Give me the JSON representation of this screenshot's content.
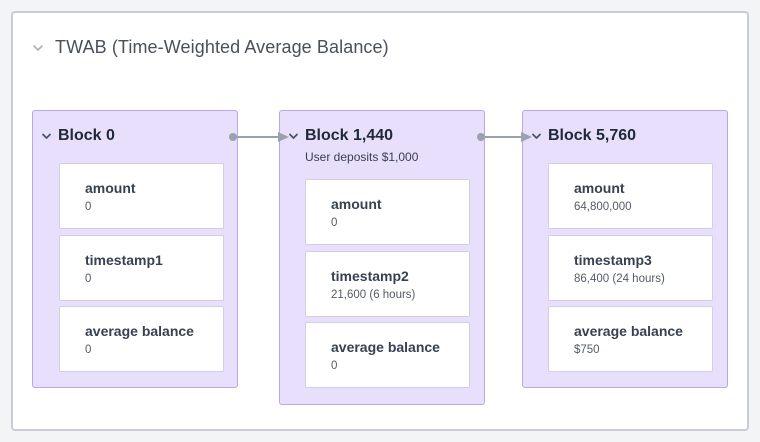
{
  "panel": {
    "title": "TWAB (Time-Weighted Average Balance)"
  },
  "blocks": [
    {
      "title": "Block 0",
      "subtitle": "",
      "fields": [
        {
          "label": "amount",
          "value": "0"
        },
        {
          "label": "timestamp1",
          "value": "0"
        },
        {
          "label": "average balance",
          "value": "0"
        }
      ]
    },
    {
      "title": "Block 1,440",
      "subtitle": "User deposits $1,000",
      "fields": [
        {
          "label": "amount",
          "value": "0"
        },
        {
          "label": "timestamp2",
          "value": "21,600 (6 hours)"
        },
        {
          "label": "average balance",
          "value": "0"
        }
      ]
    },
    {
      "title": "Block 5,760",
      "subtitle": "",
      "fields": [
        {
          "label": "amount",
          "value": "64,800,000"
        },
        {
          "label": "timestamp3",
          "value": "86,400 (24 hours)"
        },
        {
          "label": "average balance",
          "value": "$750"
        }
      ]
    }
  ],
  "colors": {
    "block_fill": "#e7dffc",
    "block_border": "#b9a6ee",
    "connector": "#9aa3ad"
  },
  "icons": [
    "chevron-down-icon"
  ]
}
